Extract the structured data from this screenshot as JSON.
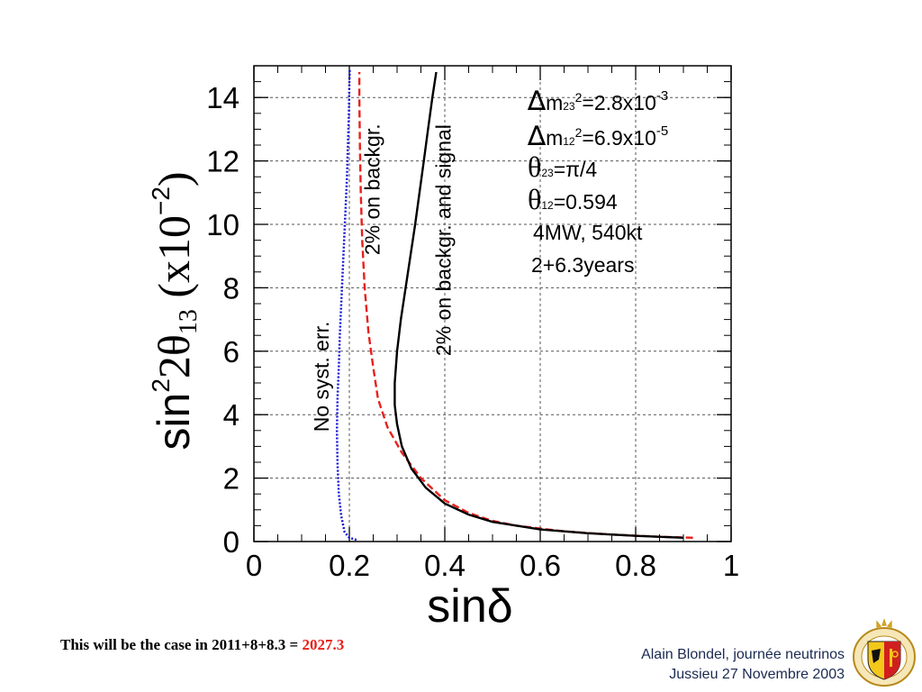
{
  "chart_data": {
    "type": "line",
    "xlabel": "sinδ",
    "ylabel_main": "sin",
    "ylabel_sup": "2",
    "ylabel_theta": "2θ",
    "ylabel_sub": "13",
    "ylabel_units": " (x10",
    "ylabel_units_exp": "−2",
    "ylabel_units_close": ")",
    "xlim": [
      0,
      1
    ],
    "ylim": [
      0,
      15
    ],
    "xticks": [
      "0",
      "0.2",
      "0.4",
      "0.6",
      "0.8",
      "1"
    ],
    "yticks": [
      "0",
      "2",
      "4",
      "6",
      "8",
      "10",
      "12",
      "14"
    ],
    "grid": true,
    "series": [
      {
        "name": "No syst. err.",
        "color": "#1515d8",
        "style": "dotted",
        "points": [
          [
            0.215,
            0.05
          ],
          [
            0.2,
            0.12
          ],
          [
            0.19,
            0.3
          ],
          [
            0.183,
            0.8
          ],
          [
            0.178,
            1.5
          ],
          [
            0.175,
            2.5
          ],
          [
            0.174,
            3.5
          ],
          [
            0.175,
            4.5
          ],
          [
            0.178,
            5.5
          ],
          [
            0.18,
            6.5
          ],
          [
            0.183,
            7.5
          ],
          [
            0.186,
            8.5
          ],
          [
            0.189,
            9.5
          ],
          [
            0.192,
            10.5
          ],
          [
            0.195,
            11.5
          ],
          [
            0.197,
            12.5
          ],
          [
            0.199,
            13.5
          ],
          [
            0.2,
            14.5
          ],
          [
            0.201,
            14.9
          ]
        ]
      },
      {
        "name": "2% on backgr.",
        "color": "#e8201b",
        "style": "dashed",
        "points": [
          [
            0.92,
            0.12
          ],
          [
            0.85,
            0.15
          ],
          [
            0.75,
            0.22
          ],
          [
            0.65,
            0.32
          ],
          [
            0.55,
            0.5
          ],
          [
            0.5,
            0.65
          ],
          [
            0.45,
            0.9
          ],
          [
            0.4,
            1.3
          ],
          [
            0.35,
            2.0
          ],
          [
            0.31,
            2.8
          ],
          [
            0.28,
            3.6
          ],
          [
            0.26,
            4.5
          ],
          [
            0.25,
            5.5
          ],
          [
            0.24,
            6.6
          ],
          [
            0.232,
            8.0
          ],
          [
            0.227,
            9.5
          ],
          [
            0.224,
            11.0
          ],
          [
            0.222,
            12.5
          ],
          [
            0.221,
            14.0
          ],
          [
            0.221,
            14.8
          ]
        ]
      },
      {
        "name": "2% on backgr. and signal",
        "color": "#000000",
        "style": "solid",
        "points": [
          [
            0.9,
            0.12
          ],
          [
            0.8,
            0.18
          ],
          [
            0.7,
            0.26
          ],
          [
            0.6,
            0.38
          ],
          [
            0.5,
            0.62
          ],
          [
            0.45,
            0.85
          ],
          [
            0.4,
            1.2
          ],
          [
            0.36,
            1.7
          ],
          [
            0.33,
            2.3
          ],
          [
            0.31,
            3.0
          ],
          [
            0.3,
            3.7
          ],
          [
            0.295,
            4.3
          ],
          [
            0.295,
            5.0
          ],
          [
            0.3,
            6.0
          ],
          [
            0.308,
            7.0
          ],
          [
            0.318,
            8.0
          ],
          [
            0.328,
            9.0
          ],
          [
            0.338,
            10.0
          ],
          [
            0.347,
            11.0
          ],
          [
            0.356,
            12.0
          ],
          [
            0.365,
            13.0
          ],
          [
            0.374,
            14.0
          ],
          [
            0.382,
            14.8
          ]
        ]
      }
    ],
    "annotations": [
      {
        "text": "No syst. err.",
        "x": 0.157,
        "y": 5.2,
        "rotate": -90,
        "size": 23
      },
      {
        "text": "2% on backgr.",
        "x": 0.263,
        "y": 11.1,
        "rotate": -90,
        "size": 23
      },
      {
        "text": "2% on backgr. and signal",
        "x": 0.412,
        "y": 9.5,
        "rotate": -90,
        "size": 23
      }
    ],
    "parameters": [
      {
        "main": "m",
        "sub": "23",
        "sup": "2",
        "rest": "=2.8x10",
        "exp": "-3"
      },
      {
        "main": "m",
        "sub": "12",
        "sup": "2",
        "rest": "=6.9x10",
        "exp": "-5"
      },
      {
        "sub": "23",
        "rest": "=π/4"
      },
      {
        "sub": "12",
        "rest": "=0.594"
      },
      {
        "rest": "4MW, 540kt"
      },
      {
        "rest": "2+6.3years"
      }
    ]
  },
  "footer": {
    "note_prefix": "This will be the case in 2011+8+8.3 = ",
    "note_value": "2027.3",
    "author_line": "Alain Blondel, journée neutrinos",
    "venue_line": "Jussieu 27 Novembre 2003"
  },
  "colors": {
    "accent": "#e8201b",
    "footer_text": "#1b2a52"
  },
  "logo": {
    "icon": "university-of-geneva-seal"
  }
}
